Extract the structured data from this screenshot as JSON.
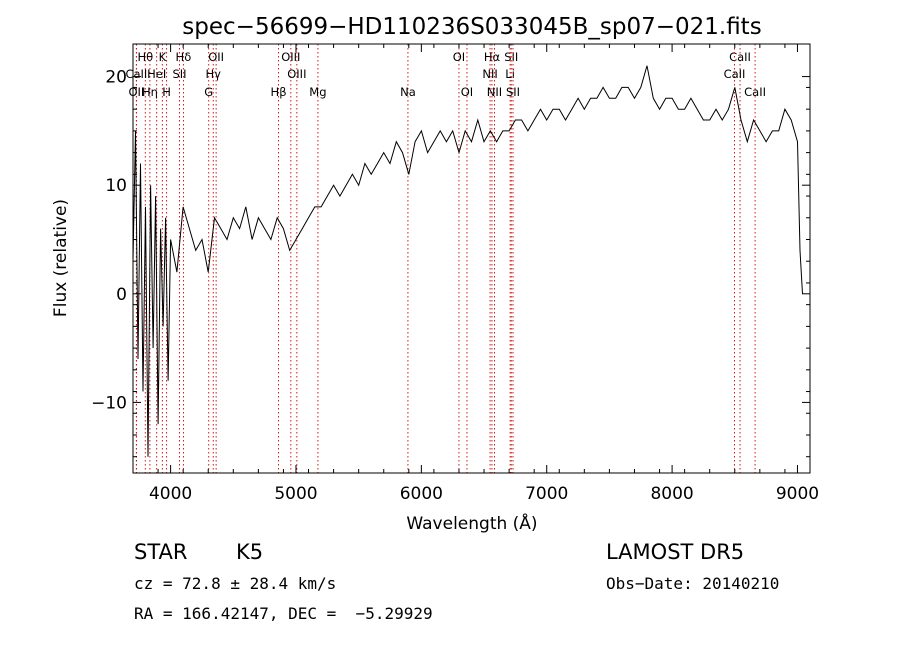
{
  "chart_data": {
    "type": "line",
    "title": "spec−56699−HD110236S033045B_sp07−021.fits",
    "xlabel": "Wavelength (Å)",
    "ylabel": "Flux (relative)",
    "xlim": [
      3700,
      9100
    ],
    "ylim": [
      -16.5,
      23
    ],
    "x_ticks": [
      4000,
      5000,
      6000,
      7000,
      8000,
      9000
    ],
    "y_ticks": [
      -10,
      0,
      10,
      20
    ],
    "y_tick_labels": [
      "−10",
      "0",
      "10",
      "20"
    ],
    "series": [
      {
        "x": [
          3700,
          3720,
          3740,
          3760,
          3780,
          3800,
          3820,
          3840,
          3860,
          3880,
          3900,
          3920,
          3940,
          3960,
          3980,
          4000,
          4050,
          4100,
          4150,
          4200,
          4250,
          4300,
          4350,
          4400,
          4450,
          4500,
          4550,
          4600,
          4650,
          4700,
          4750,
          4800,
          4850,
          4900,
          4950,
          5000,
          5050,
          5100,
          5150,
          5200,
          5250,
          5300,
          5350,
          5400,
          5450,
          5500,
          5550,
          5600,
          5650,
          5700,
          5750,
          5800,
          5850,
          5900,
          5950,
          6000,
          6050,
          6100,
          6150,
          6200,
          6250,
          6300,
          6350,
          6400,
          6450,
          6500,
          6550,
          6600,
          6650,
          6700,
          6750,
          6800,
          6850,
          6900,
          6950,
          7000,
          7050,
          7100,
          7150,
          7200,
          7250,
          7300,
          7350,
          7400,
          7450,
          7500,
          7550,
          7600,
          7650,
          7700,
          7750,
          7800,
          7850,
          7900,
          7950,
          8000,
          8050,
          8100,
          8150,
          8200,
          8250,
          8300,
          8350,
          8400,
          8450,
          8500,
          8550,
          8600,
          8650,
          8700,
          8750,
          8800,
          8850,
          8900,
          8950,
          9000,
          9020,
          9040
        ],
        "y": [
          3,
          15,
          -6,
          12,
          -9,
          8,
          -15,
          10,
          -5,
          9,
          -12,
          6,
          -3,
          7,
          -8,
          5,
          2,
          8,
          6,
          4,
          5,
          2,
          7,
          6,
          5,
          7,
          6,
          8,
          5,
          7,
          6,
          5,
          7,
          6,
          4,
          5,
          6,
          7,
          8,
          8,
          9,
          10,
          9,
          10,
          11,
          10,
          12,
          11,
          12,
          13,
          12,
          14,
          13,
          11,
          14,
          15,
          13,
          14,
          15,
          14,
          15,
          13,
          15,
          14,
          16,
          14,
          15,
          14,
          15,
          15,
          16,
          16,
          15,
          16,
          17,
          16,
          17,
          17,
          16,
          17,
          18,
          17,
          18,
          18,
          19,
          18,
          18,
          19,
          19,
          18,
          19,
          21,
          18,
          17,
          18,
          18,
          17,
          17,
          18,
          17,
          16,
          16,
          17,
          16,
          17,
          19,
          16,
          14,
          16,
          15,
          14,
          15,
          15,
          17,
          16,
          14,
          4,
          0
        ]
      }
    ],
    "emission_lines": [
      {
        "label": "Hθ",
        "x": 3798,
        "row": 1
      },
      {
        "label": "K",
        "x": 3934,
        "row": 1
      },
      {
        "label": "Hδ",
        "x": 4102,
        "row": 1
      },
      {
        "label": "OII",
        "x": 4363,
        "row": 1
      },
      {
        "label": "OIII",
        "x": 4959,
        "row": 1
      },
      {
        "label": "OI",
        "x": 6300,
        "row": 1
      },
      {
        "label": "Hα",
        "x": 6563,
        "row": 1
      },
      {
        "label": "SII",
        "x": 6717,
        "row": 1
      },
      {
        "label": "CaII",
        "x": 8542,
        "row": 1
      },
      {
        "label": "CaII",
        "x": 3727,
        "row": 2
      },
      {
        "label": "HeI",
        "x": 3889,
        "row": 2
      },
      {
        "label": "SII",
        "x": 4071,
        "row": 2
      },
      {
        "label": "Hγ",
        "x": 4340,
        "row": 2
      },
      {
        "label": "OIII",
        "x": 5007,
        "row": 2
      },
      {
        "label": "NII",
        "x": 6548,
        "row": 2
      },
      {
        "label": "Li",
        "x": 6708,
        "row": 2
      },
      {
        "label": "CaII",
        "x": 8498,
        "row": 2
      },
      {
        "label": "OII",
        "x": 3727,
        "row": 3
      },
      {
        "label": "Hη",
        "x": 3835,
        "row": 3
      },
      {
        "label": "H",
        "x": 3968,
        "row": 3
      },
      {
        "label": "G",
        "x": 4304,
        "row": 3
      },
      {
        "label": "Hβ",
        "x": 4861,
        "row": 3
      },
      {
        "label": "Mg",
        "x": 5175,
        "row": 3
      },
      {
        "label": "Na",
        "x": 5893,
        "row": 3
      },
      {
        "label": "OI",
        "x": 6364,
        "row": 3
      },
      {
        "label": "NII",
        "x": 6583,
        "row": 3
      },
      {
        "label": "SII",
        "x": 6731,
        "row": 3
      },
      {
        "label": "CaII",
        "x": 8662,
        "row": 3
      }
    ],
    "line_color": "#000000",
    "marker_color": "#cc0000"
  },
  "info": {
    "object_class": "STAR",
    "subclass": "K5",
    "survey": "LAMOST DR5",
    "cz": "cz = 72.8 ± 28.4 km/s",
    "obs_date": "Obs−Date: 20140210",
    "coords": "RA = 166.42147, DEC =  −5.29929"
  }
}
